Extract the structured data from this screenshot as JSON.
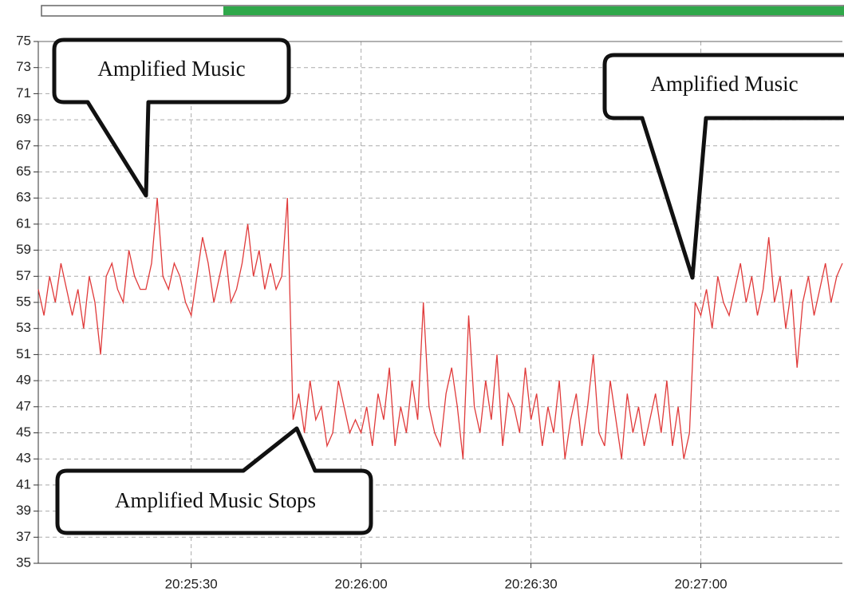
{
  "chart_data": {
    "type": "line",
    "annotations": [
      "Amplified Music",
      "Amplified Music",
      "Amplified Music Stops"
    ],
    "x": [
      "20:25:03",
      "20:25:04",
      "20:25:05",
      "20:25:06",
      "20:25:07",
      "20:25:08",
      "20:25:09",
      "20:25:10",
      "20:25:11",
      "20:25:12",
      "20:25:13",
      "20:25:14",
      "20:25:15",
      "20:25:16",
      "20:25:17",
      "20:25:18",
      "20:25:19",
      "20:25:20",
      "20:25:21",
      "20:25:22",
      "20:25:23",
      "20:25:24",
      "20:25:25",
      "20:25:26",
      "20:25:27",
      "20:25:28",
      "20:25:29",
      "20:25:30",
      "20:25:31",
      "20:25:32",
      "20:25:33",
      "20:25:34",
      "20:25:35",
      "20:25:36",
      "20:25:37",
      "20:25:38",
      "20:25:39",
      "20:25:40",
      "20:25:41",
      "20:25:42",
      "20:25:43",
      "20:25:44",
      "20:25:45",
      "20:25:46",
      "20:25:47",
      "20:25:48",
      "20:25:49",
      "20:25:50",
      "20:25:51",
      "20:25:52",
      "20:25:53",
      "20:25:54",
      "20:25:55",
      "20:25:56",
      "20:25:57",
      "20:25:58",
      "20:25:59",
      "20:26:00",
      "20:26:01",
      "20:26:02",
      "20:26:03",
      "20:26:04",
      "20:26:05",
      "20:26:06",
      "20:26:07",
      "20:26:08",
      "20:26:09",
      "20:26:10",
      "20:26:11",
      "20:26:12",
      "20:26:13",
      "20:26:14",
      "20:26:15",
      "20:26:16",
      "20:26:17",
      "20:26:18",
      "20:26:19",
      "20:26:20",
      "20:26:21",
      "20:26:22",
      "20:26:23",
      "20:26:24",
      "20:26:25",
      "20:26:26",
      "20:26:27",
      "20:26:28",
      "20:26:29",
      "20:26:30",
      "20:26:31",
      "20:26:32",
      "20:26:33",
      "20:26:34",
      "20:26:35",
      "20:26:36",
      "20:26:37",
      "20:26:38",
      "20:26:39",
      "20:26:40",
      "20:26:41",
      "20:26:42",
      "20:26:43",
      "20:26:44",
      "20:26:45",
      "20:26:46",
      "20:26:47",
      "20:26:48",
      "20:26:49",
      "20:26:50",
      "20:26:51",
      "20:26:52",
      "20:26:53",
      "20:26:54",
      "20:26:55",
      "20:26:56",
      "20:26:57",
      "20:26:58",
      "20:26:59",
      "20:27:00",
      "20:27:01",
      "20:27:02",
      "20:27:03",
      "20:27:04",
      "20:27:05",
      "20:27:06",
      "20:27:07",
      "20:27:08",
      "20:27:09",
      "20:27:10",
      "20:27:11",
      "20:27:12",
      "20:27:13",
      "20:27:14",
      "20:27:15",
      "20:27:16",
      "20:27:17",
      "20:27:18",
      "20:27:19",
      "20:27:20",
      "20:27:21",
      "20:27:22",
      "20:27:23",
      "20:27:24",
      "20:27:25"
    ],
    "values": [
      56,
      54,
      57,
      55,
      58,
      56,
      54,
      56,
      53,
      57,
      55,
      51,
      57,
      58,
      56,
      55,
      59,
      57,
      56,
      56,
      58,
      63,
      57,
      56,
      58,
      57,
      55,
      54,
      57,
      60,
      58,
      55,
      57,
      59,
      55,
      56,
      58,
      61,
      57,
      59,
      56,
      58,
      56,
      57,
      63,
      46,
      48,
      45,
      49,
      46,
      47,
      44,
      45,
      49,
      47,
      45,
      46,
      45,
      47,
      44,
      48,
      46,
      50,
      44,
      47,
      45,
      49,
      46,
      55,
      47,
      45,
      44,
      48,
      50,
      47,
      43,
      54,
      47,
      45,
      49,
      46,
      51,
      44,
      48,
      47,
      45,
      50,
      46,
      48,
      44,
      47,
      45,
      49,
      43,
      46,
      48,
      44,
      47,
      51,
      45,
      44,
      49,
      46,
      43,
      48,
      45,
      47,
      44,
      46,
      48,
      45,
      49,
      44,
      47,
      43,
      45,
      55,
      54,
      56,
      53,
      57,
      55,
      54,
      56,
      58,
      55,
      57,
      54,
      56,
      60,
      55,
      57,
      53,
      56,
      50,
      55,
      57,
      54,
      56,
      58,
      55,
      57,
      58
    ],
    "color": "#e03a3a",
    "xlim": [
      "20:25:03",
      "20:27:25"
    ],
    "xticks": [
      "20:25:30",
      "20:26:00",
      "20:26:30",
      "20:27:00"
    ],
    "ylim": [
      35,
      75
    ],
    "yticks": [
      35,
      37,
      39,
      41,
      43,
      45,
      47,
      49,
      51,
      53,
      55,
      57,
      59,
      61,
      63,
      65,
      67,
      69,
      71,
      73,
      75
    ],
    "grid": true
  }
}
